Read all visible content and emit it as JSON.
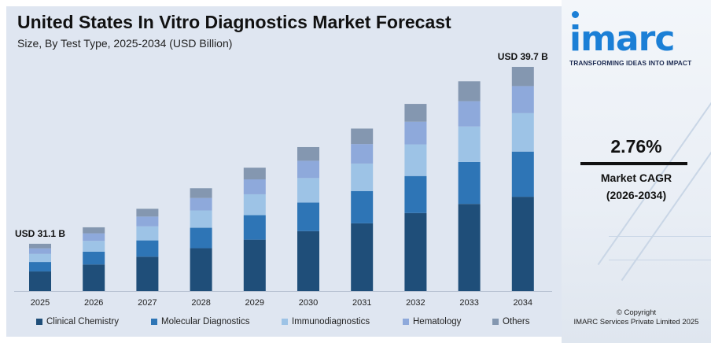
{
  "header": {
    "title": "United States In Vitro Diagnostics Market Forecast",
    "subtitle": "Size, By Test Type, 2025-2034 (USD Billion)"
  },
  "brand": {
    "logo_text": "imarc",
    "tagline": "TRANSFORMING IDEAS INTO IMPACT",
    "accent_color": "#1b7fd6"
  },
  "side": {
    "cagr_value": "2.76%",
    "cagr_label": "Market CAGR",
    "cagr_period": "(2026-2034)",
    "copyright_line1": "© Copyright",
    "copyright_line2": "IMARC Services Private Limited 2025"
  },
  "chart_data": {
    "type": "bar",
    "stacked": true,
    "categories": [
      "2025",
      "2026",
      "2027",
      "2028",
      "2029",
      "2030",
      "2031",
      "2032",
      "2033",
      "2034"
    ],
    "series": [
      {
        "name": "Clinical Chemistry",
        "color": "#1f4e79",
        "values": [
          12.9,
          13.3,
          13.7,
          14.1,
          14.5,
          14.9,
          15.3,
          15.8,
          16.2,
          16.7
        ]
      },
      {
        "name": "Molecular Diagnostics",
        "color": "#2e75b6",
        "values": [
          6.2,
          6.4,
          6.5,
          6.7,
          6.9,
          7.1,
          7.3,
          7.5,
          7.8,
          8.0
        ]
      },
      {
        "name": "Immunodiagnostics",
        "color": "#9dc3e6",
        "values": [
          5.3,
          5.4,
          5.6,
          5.7,
          5.9,
          6.1,
          6.2,
          6.4,
          6.6,
          6.8
        ]
      },
      {
        "name": "Hematology",
        "color": "#8ea9db",
        "values": [
          3.7,
          3.8,
          3.9,
          4.1,
          4.2,
          4.3,
          4.4,
          4.6,
          4.7,
          4.8
        ]
      },
      {
        "name": "Others",
        "color": "#8497b0",
        "values": [
          3.0,
          3.0,
          3.1,
          3.2,
          3.3,
          3.4,
          3.5,
          3.6,
          3.7,
          3.4
        ]
      }
    ],
    "totals": [
      31.1,
      31.9,
      32.8,
      33.8,
      34.8,
      35.8,
      36.7,
      37.9,
      39.0,
      39.7
    ],
    "annotations": [
      {
        "category": "2025",
        "text": "USD 31.1 B"
      },
      {
        "category": "2034",
        "text": "USD 39.7 B"
      }
    ],
    "y_baseline": 28.8,
    "grid": false,
    "legend_position": "bottom"
  }
}
